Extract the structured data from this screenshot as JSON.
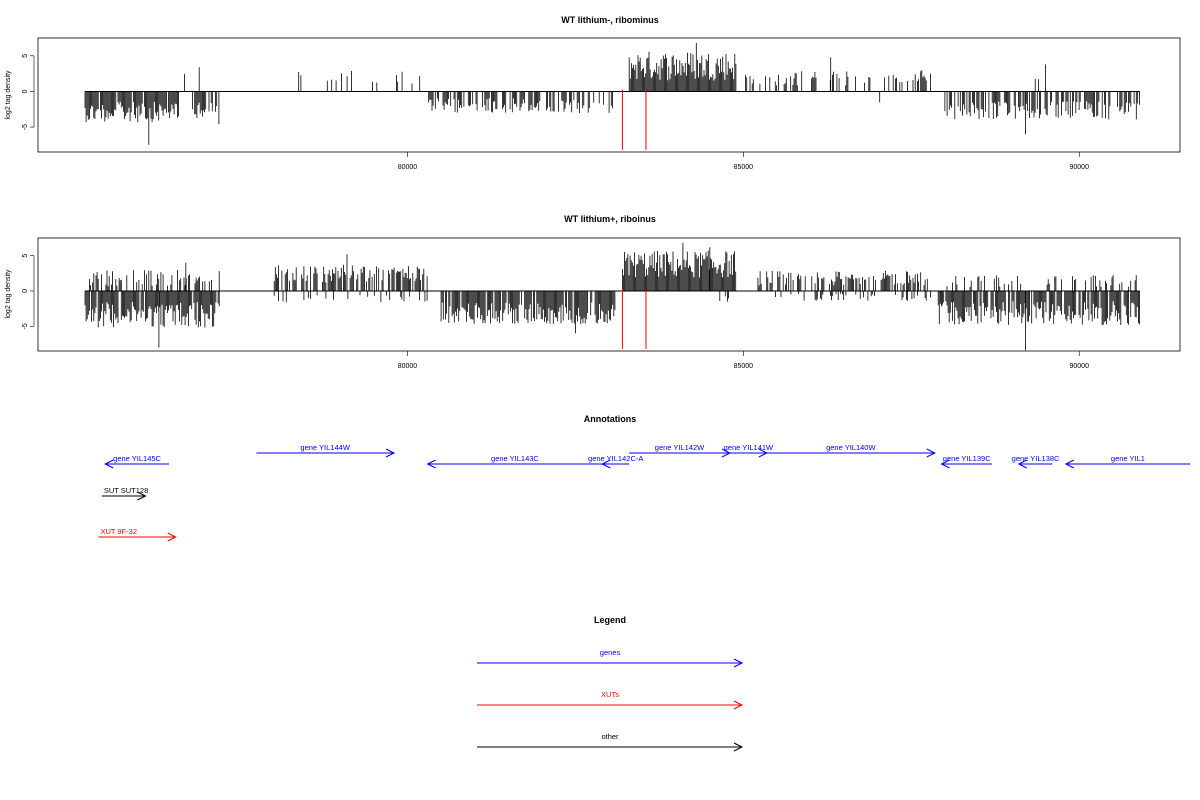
{
  "chart_data": [
    {
      "type": "bar",
      "title": "WT lithium-, ribominus",
      "ylabel": "log2 tag density",
      "xlim": [
        74500,
        91500
      ],
      "ylim": [
        -8.5,
        7.5
      ],
      "xticks": [
        80000,
        85000,
        90000
      ],
      "yticks": [
        -5,
        0,
        5
      ],
      "baseline": [
        75200,
        90900
      ],
      "markers": [
        83200,
        83550
      ],
      "segments": [
        {
          "from": 75200,
          "to": 76600,
          "sign": -1,
          "mean": 2.6,
          "amp": 2.2,
          "density": 0.9
        },
        {
          "from": 76600,
          "to": 76800,
          "sign": 1,
          "mean": 1.2,
          "amp": 2.0,
          "density": 0.1
        },
        {
          "from": 76800,
          "to": 77200,
          "sign": -1,
          "mean": 2.8,
          "amp": 2.5,
          "density": 0.8
        },
        {
          "from": 78200,
          "to": 80200,
          "sign": 1,
          "mean": 1.8,
          "amp": 1.4,
          "density": 0.12
        },
        {
          "from": 80300,
          "to": 83100,
          "sign": -1,
          "mean": 1.8,
          "amp": 1.6,
          "density": 0.5
        },
        {
          "from": 83300,
          "to": 84900,
          "sign": 1,
          "mean": 3.2,
          "amp": 3.2,
          "density": 1.0
        },
        {
          "from": 85000,
          "to": 86900,
          "sign": 1,
          "mean": 1.6,
          "amp": 1.6,
          "density": 0.3
        },
        {
          "from": 86800,
          "to": 87100,
          "sign": -1,
          "mean": 1.0,
          "amp": 0.8,
          "density": 0.1
        },
        {
          "from": 87100,
          "to": 87800,
          "sign": 1,
          "mean": 2.0,
          "amp": 1.4,
          "density": 0.5
        },
        {
          "from": 88000,
          "to": 90900,
          "sign": -1,
          "mean": 2.4,
          "amp": 2.0,
          "density": 0.6
        },
        {
          "from": 89000,
          "to": 89600,
          "sign": 1,
          "mean": 1.0,
          "amp": 1.8,
          "density": 0.05
        }
      ],
      "spikes": [
        {
          "x": 76900,
          "y": 3.4
        },
        {
          "x": 84300,
          "y": 6.8
        },
        {
          "x": 86300,
          "y": 4.8
        },
        {
          "x": 89500,
          "y": 3.8
        },
        {
          "x": 76150,
          "y": -7.5
        },
        {
          "x": 89200,
          "y": -6.0
        }
      ]
    },
    {
      "type": "bar",
      "title": "WT lithium+, riboinus",
      "ylabel": "log2 tag density",
      "xlim": [
        74500,
        91500
      ],
      "ylim": [
        -8.5,
        7.5
      ],
      "xticks": [
        80000,
        85000,
        90000
      ],
      "yticks": [
        -5,
        0,
        5
      ],
      "baseline": [
        75200,
        90900
      ],
      "markers": [
        83200,
        83550
      ],
      "segments": [
        {
          "from": 75200,
          "to": 77200,
          "sign": -1,
          "mean": 3.0,
          "amp": 2.8,
          "density": 0.9
        },
        {
          "from": 75200,
          "to": 77200,
          "sign": 1,
          "mean": 1.6,
          "amp": 1.8,
          "density": 0.4
        },
        {
          "from": 78000,
          "to": 80300,
          "sign": 1,
          "mean": 2.2,
          "amp": 2.0,
          "density": 0.6
        },
        {
          "from": 78000,
          "to": 80300,
          "sign": -1,
          "mean": 1.0,
          "amp": 0.8,
          "density": 0.15
        },
        {
          "from": 80500,
          "to": 83100,
          "sign": -1,
          "mean": 2.8,
          "amp": 2.4,
          "density": 0.85
        },
        {
          "from": 83200,
          "to": 84900,
          "sign": 1,
          "mean": 3.4,
          "amp": 3.0,
          "density": 1.0
        },
        {
          "from": 84600,
          "to": 84900,
          "sign": -1,
          "mean": 1.0,
          "amp": 1.4,
          "density": 0.2
        },
        {
          "from": 85200,
          "to": 87800,
          "sign": 1,
          "mean": 1.6,
          "amp": 1.6,
          "density": 0.55
        },
        {
          "from": 85200,
          "to": 87800,
          "sign": -1,
          "mean": 0.8,
          "amp": 0.8,
          "density": 0.2
        },
        {
          "from": 87900,
          "to": 90900,
          "sign": -1,
          "mean": 2.8,
          "amp": 2.6,
          "density": 0.85
        },
        {
          "from": 87900,
          "to": 90900,
          "sign": 1,
          "mean": 1.2,
          "amp": 1.4,
          "density": 0.25
        }
      ],
      "spikes": [
        {
          "x": 76700,
          "y": 4.0
        },
        {
          "x": 79100,
          "y": 5.2
        },
        {
          "x": 84100,
          "y": 6.8
        },
        {
          "x": 84500,
          "y": 6.2
        },
        {
          "x": 76300,
          "y": -8.0
        },
        {
          "x": 89200,
          "y": -8.4
        },
        {
          "x": 82500,
          "y": -6.0
        }
      ]
    }
  ],
  "annotations": {
    "title": "Annotations",
    "features": [
      {
        "label": "gene YIL145C",
        "type": "gene",
        "strand": "-",
        "start": 75500,
        "end": 76450,
        "row": 1
      },
      {
        "label": "gene YIL144W",
        "type": "gene",
        "strand": "+",
        "start": 77750,
        "end": 79800,
        "row": 0
      },
      {
        "label": "gene YIL143C",
        "type": "gene",
        "strand": "-",
        "start": 80300,
        "end": 82900,
        "row": 1
      },
      {
        "label": "gene YIL142C-A",
        "type": "gene",
        "strand": "-",
        "start": 82900,
        "end": 83300,
        "row": 1
      },
      {
        "label": "gene YIL142W",
        "type": "gene",
        "strand": "+",
        "start": 83300,
        "end": 84800,
        "row": 0
      },
      {
        "label": "gene YIL141W",
        "type": "gene",
        "strand": "+",
        "start": 84800,
        "end": 85350,
        "row": 0
      },
      {
        "label": "gene YIL140W",
        "type": "gene",
        "strand": "+",
        "start": 85350,
        "end": 87850,
        "row": 0
      },
      {
        "label": "gene YIL139C",
        "type": "gene",
        "strand": "-",
        "start": 87950,
        "end": 88700,
        "row": 1
      },
      {
        "label": "gene YIL138C",
        "type": "gene",
        "strand": "-",
        "start": 89100,
        "end": 89600,
        "row": 1
      },
      {
        "label": "gene YIL1",
        "type": "gene",
        "strand": "-",
        "start": 89800,
        "end": 91650,
        "row": 1
      },
      {
        "label": "SUT SUT128",
        "type": "other",
        "strand": "+",
        "start": 75450,
        "end": 76100,
        "row": 2
      },
      {
        "label": "XUT 9F-32",
        "type": "xut",
        "strand": "+",
        "start": 75400,
        "end": 76550,
        "row": 3
      }
    ]
  },
  "legend": {
    "title": "Legend",
    "items": [
      {
        "label": "genes",
        "type": "gene"
      },
      {
        "label": "XUTs",
        "type": "xut"
      },
      {
        "label": "other",
        "type": "other"
      }
    ]
  },
  "colors": {
    "gene": "#0000ff",
    "xut": "#ff0000",
    "other": "#000000",
    "marker": "#ff0000",
    "bars": "#000000"
  }
}
